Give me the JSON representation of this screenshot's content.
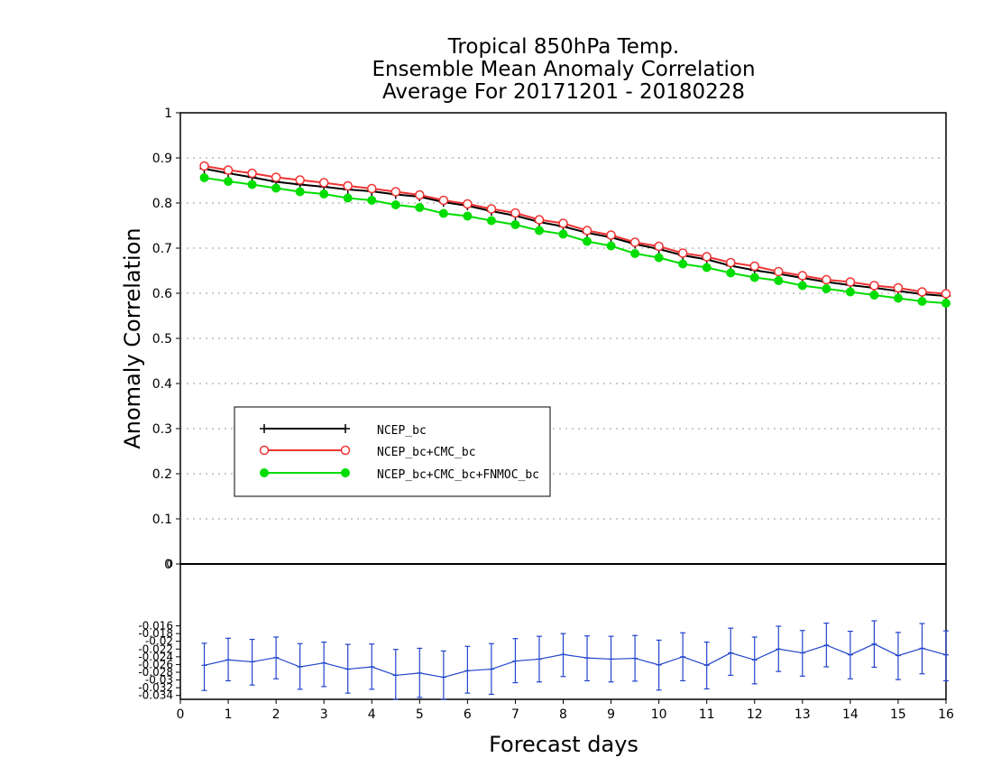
{
  "chart_data": [
    {
      "type": "line",
      "title": [
        "Tropical 850hPa Temp.",
        "Ensemble Mean Anomaly Correlation",
        "Average For 20171201 - 20180228"
      ],
      "xlabel": "Forecast days",
      "ylabel": "Anomaly Correlation",
      "xlim": [
        0,
        16
      ],
      "ylim": [
        0,
        1
      ],
      "x_ticks": [
        "0",
        "1",
        "2",
        "3",
        "4",
        "5",
        "6",
        "7",
        "8",
        "9",
        "10",
        "11",
        "12",
        "13",
        "14",
        "15",
        "16"
      ],
      "y_ticks": [
        "0",
        "0.1",
        "0.2",
        "0.3",
        "0.4",
        "0.5",
        "0.6",
        "0.7",
        "0.8",
        "0.9",
        "1"
      ],
      "grid": "horizontal dotted",
      "legend_placement": "lower-left",
      "x": [
        0.5,
        1,
        1.5,
        2,
        2.5,
        3,
        3.5,
        4,
        4.5,
        5,
        5.5,
        6,
        6.5,
        7,
        7.5,
        8,
        8.5,
        9,
        9.5,
        10,
        10.5,
        11,
        11.5,
        12,
        12.5,
        13,
        13.5,
        14,
        14.5,
        15,
        15.5,
        16
      ],
      "series": [
        {
          "name": "NCEP_bc",
          "color": "#000000",
          "marker": "plus",
          "values": [
            0.876,
            0.866,
            0.857,
            0.847,
            0.841,
            0.836,
            0.83,
            0.826,
            0.819,
            0.814,
            0.802,
            0.794,
            0.782,
            0.772,
            0.758,
            0.748,
            0.734,
            0.724,
            0.709,
            0.698,
            0.684,
            0.675,
            0.661,
            0.651,
            0.643,
            0.634,
            0.625,
            0.618,
            0.612,
            0.605,
            0.598,
            0.594
          ]
        },
        {
          "name": "NCEP_bc+CMC_bc",
          "color": "#ee3333",
          "marker": "open-circle",
          "values": [
            0.882,
            0.873,
            0.866,
            0.857,
            0.851,
            0.845,
            0.838,
            0.832,
            0.825,
            0.818,
            0.806,
            0.798,
            0.787,
            0.778,
            0.763,
            0.755,
            0.739,
            0.729,
            0.713,
            0.704,
            0.689,
            0.681,
            0.668,
            0.66,
            0.648,
            0.639,
            0.63,
            0.625,
            0.617,
            0.612,
            0.603,
            0.599
          ]
        },
        {
          "name": "NCEP_bc+CMC_bc+FNMOC_bc",
          "color": "#00dd00",
          "marker": "filled-circle",
          "values": [
            0.856,
            0.848,
            0.841,
            0.833,
            0.825,
            0.82,
            0.811,
            0.806,
            0.796,
            0.79,
            0.777,
            0.771,
            0.761,
            0.752,
            0.739,
            0.731,
            0.715,
            0.705,
            0.688,
            0.679,
            0.665,
            0.657,
            0.645,
            0.635,
            0.628,
            0.617,
            0.61,
            0.603,
            0.596,
            0.589,
            0.582,
            0.578
          ]
        }
      ]
    },
    {
      "type": "line",
      "xlim": [
        0,
        16
      ],
      "ylim": [
        -0.035,
        0
      ],
      "y_ticks": [
        "-0.034",
        "-0.032",
        "-0.03",
        "-0.028",
        "-0.026",
        "-0.024",
        "-0.022",
        "-0.02",
        "-0.018",
        "-0.016"
      ],
      "x": [
        0.5,
        1,
        1.5,
        2,
        2.5,
        3,
        3.5,
        4,
        4.5,
        5,
        5.5,
        6,
        6.5,
        7,
        7.5,
        8,
        8.5,
        9,
        9.5,
        10,
        10.5,
        11,
        11.5,
        12,
        12.5,
        13,
        13.5,
        14,
        14.5,
        15,
        15.5,
        16
      ],
      "series": [
        {
          "name": "",
          "color": "#2244cc",
          "error_bars": true,
          "values": [
            -0.0262,
            -0.0248,
            -0.0253,
            -0.0242,
            -0.0266,
            -0.0256,
            -0.0272,
            -0.0266,
            -0.0288,
            -0.0282,
            -0.0293,
            -0.0276,
            -0.0272,
            -0.0251,
            -0.0246,
            -0.0234,
            -0.0243,
            -0.0246,
            -0.0244,
            -0.0261,
            -0.024,
            -0.0262,
            -0.023,
            -0.0248,
            -0.022,
            -0.023,
            -0.021,
            -0.0235,
            -0.0207,
            -0.0237,
            -0.0218,
            -0.0235
          ],
          "low": [
            -0.0327,
            -0.0302,
            -0.0313,
            -0.0297,
            -0.0324,
            -0.0317,
            -0.0334,
            -0.0324,
            -0.0355,
            -0.0345,
            -0.0357,
            -0.0334,
            -0.0337,
            -0.0307,
            -0.0305,
            -0.0291,
            -0.0302,
            -0.0305,
            -0.0303,
            -0.0326,
            -0.0302,
            -0.0323,
            -0.0288,
            -0.031,
            -0.0278,
            -0.029,
            -0.0266,
            -0.0297,
            -0.0267,
            -0.0299,
            -0.0284,
            -0.0302
          ],
          "high": [
            -0.0205,
            -0.0192,
            -0.0195,
            -0.0189,
            -0.0206,
            -0.0202,
            -0.0208,
            -0.0207,
            -0.0221,
            -0.0218,
            -0.0225,
            -0.0213,
            -0.0206,
            -0.0193,
            -0.0187,
            -0.018,
            -0.0186,
            -0.0187,
            -0.0185,
            -0.0197,
            -0.0178,
            -0.0202,
            -0.0166,
            -0.0189,
            -0.0161,
            -0.0172,
            -0.0153,
            -0.0174,
            -0.0147,
            -0.0177,
            -0.0154,
            -0.0173
          ]
        }
      ]
    }
  ]
}
